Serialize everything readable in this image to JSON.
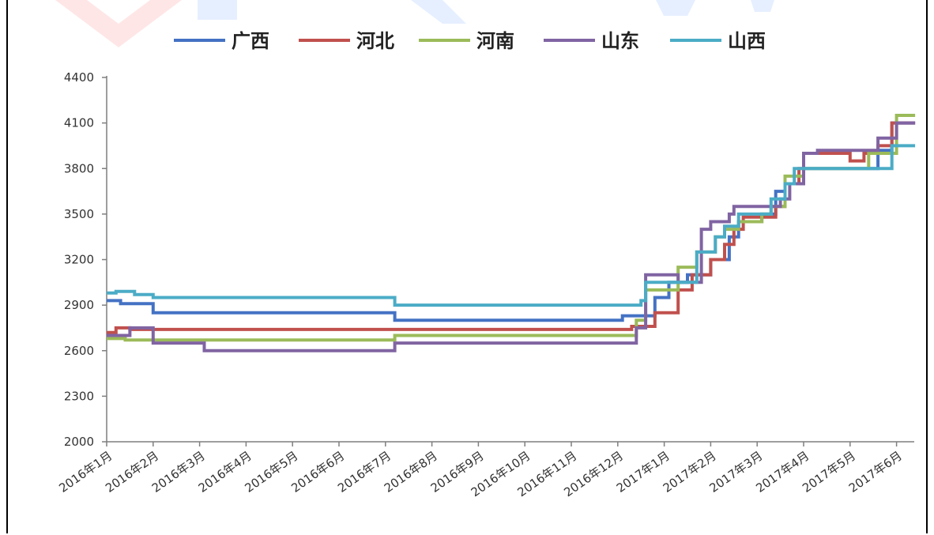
{
  "chart_data": {
    "type": "line",
    "title": "",
    "xlabel": "",
    "ylabel": "",
    "ylim": [
      2000,
      4400
    ],
    "yticks": [
      2000,
      2300,
      2600,
      2900,
      3200,
      3500,
      3800,
      4100,
      4400
    ],
    "xlim": [
      0,
      17.4
    ],
    "categories": [
      "2016年1月",
      "2016年2月",
      "2016年3月",
      "2016年4月",
      "2016年5月",
      "2016年6月",
      "2016年7月",
      "2016年8月",
      "2016年9月",
      "2016年10月",
      "2016年11月",
      "2016年12月",
      "2017年1月",
      "2017年2月",
      "2017年3月",
      "2017年4月",
      "2017年5月",
      "2017年6月"
    ],
    "legend_position": "top",
    "grid": false,
    "step": true,
    "series": [
      {
        "name": "广西",
        "color": "#4472C4",
        "x": [
          0,
          0.3,
          1.0,
          5.7,
          6.2,
          10.9,
          11.1,
          11.8,
          12.1,
          12.5,
          13.0,
          13.4,
          13.6,
          13.8,
          14.1,
          14.4,
          14.6,
          15.0,
          16.3,
          16.6,
          16.9,
          17.4
        ],
        "y": [
          2930,
          2910,
          2850,
          2850,
          2800,
          2800,
          2830,
          2950,
          3050,
          3100,
          3200,
          3350,
          3450,
          3450,
          3500,
          3650,
          3700,
          3800,
          3800,
          3920,
          4100,
          4100
        ]
      },
      {
        "name": "河北",
        "color": "#C0504D",
        "x": [
          0,
          0.2,
          0.5,
          1.0,
          5.7,
          6.2,
          10.9,
          11.3,
          11.8,
          12.3,
          12.6,
          13.0,
          13.3,
          13.5,
          13.7,
          14.3,
          14.4,
          14.6,
          14.9,
          15.0,
          15.3,
          15.8,
          16.0,
          16.3,
          16.6,
          16.9,
          17.4
        ],
        "y": [
          2720,
          2750,
          2740,
          2740,
          2740,
          2740,
          2740,
          2760,
          2850,
          3000,
          3100,
          3200,
          3300,
          3400,
          3480,
          3480,
          3550,
          3700,
          3800,
          3900,
          3900,
          3900,
          3850,
          3900,
          3950,
          4100,
          4100
        ]
      },
      {
        "name": "河南",
        "color": "#9BBB59",
        "x": [
          0,
          0.4,
          1.0,
          5.7,
          6.2,
          11.2,
          11.4,
          11.6,
          12.0,
          12.3,
          12.7,
          13.1,
          13.3,
          13.6,
          13.8,
          14.1,
          14.3,
          14.6,
          15.0,
          16.4,
          16.8,
          17.0,
          17.4
        ],
        "y": [
          2680,
          2670,
          2670,
          2670,
          2700,
          2700,
          2800,
          3000,
          3000,
          3150,
          3250,
          3350,
          3400,
          3450,
          3450,
          3500,
          3550,
          3750,
          3800,
          3900,
          3900,
          4150,
          4150
        ]
      },
      {
        "name": "山东",
        "color": "#8064A2",
        "x": [
          0,
          0.5,
          0.9,
          1.0,
          2.1,
          5.7,
          6.2,
          10.9,
          11.4,
          11.6,
          12.2,
          12.3,
          12.8,
          13.0,
          13.4,
          13.5,
          13.8,
          14.1,
          14.5,
          14.7,
          15.0,
          15.3,
          15.9,
          16.3,
          16.6,
          16.8,
          17.0,
          17.4
        ],
        "y": [
          2700,
          2750,
          2750,
          2650,
          2600,
          2600,
          2650,
          2650,
          2750,
          3100,
          3100,
          3050,
          3400,
          3450,
          3500,
          3550,
          3550,
          3550,
          3600,
          3700,
          3900,
          3920,
          3920,
          3920,
          4000,
          4000,
          4100,
          4100
        ]
      },
      {
        "name": "山西",
        "color": "#4BACC6",
        "x": [
          0,
          0.2,
          0.6,
          1.0,
          5.7,
          6.2,
          10.9,
          11.5,
          11.6,
          12.2,
          12.7,
          12.9,
          13.1,
          13.3,
          13.6,
          14.0,
          14.3,
          14.6,
          14.8,
          15.2,
          15.6,
          16.3,
          16.9,
          17.4
        ],
        "y": [
          2980,
          2990,
          2970,
          2950,
          2950,
          2900,
          2900,
          2930,
          3050,
          3050,
          3250,
          3250,
          3350,
          3420,
          3500,
          3500,
          3600,
          3700,
          3800,
          3800,
          3800,
          3800,
          3950,
          3950
        ]
      }
    ]
  },
  "watermark": {
    "colors": [
      "#FFD6D6",
      "#D6E4FF"
    ]
  }
}
